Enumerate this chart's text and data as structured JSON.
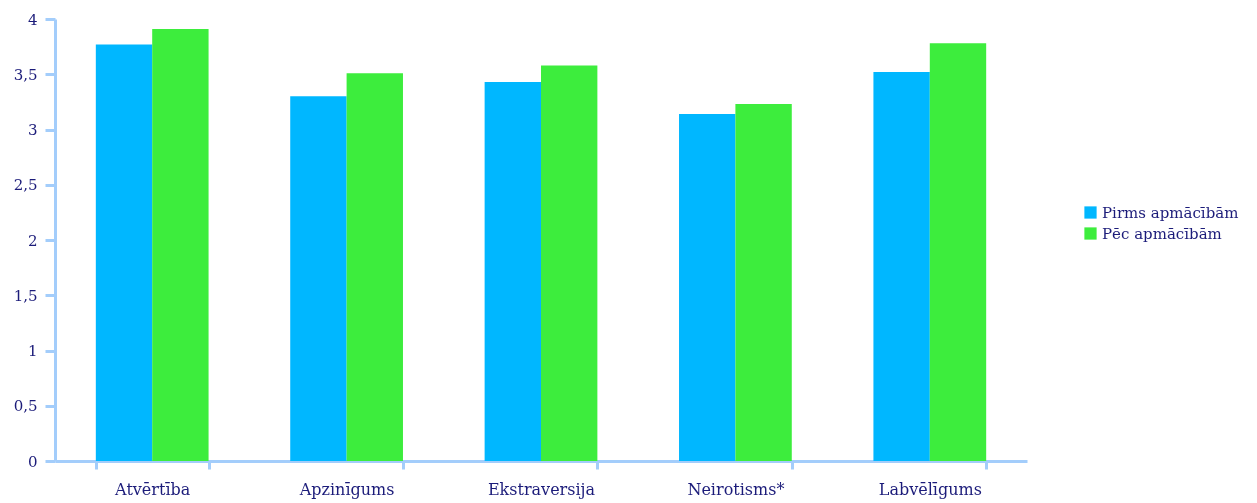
{
  "chart_data": {
    "type": "bar",
    "categories": [
      "Atvērtība",
      "Apzinīgums",
      "Ekstraversija",
      "Neirotisms*",
      "Labvēlīgums"
    ],
    "series": [
      {
        "name": "Pirms apmācībām",
        "color": "#00b7ff",
        "values": [
          3.77,
          3.3,
          3.43,
          3.14,
          3.52
        ]
      },
      {
        "name": "Pēc apmācībām",
        "color": "#3ded3d",
        "values": [
          3.91,
          3.51,
          3.58,
          3.23,
          3.78
        ]
      }
    ],
    "ylim": [
      0,
      4
    ],
    "yticks": [
      0,
      {
        "value": 0.5,
        "label": "0,5"
      },
      1,
      {
        "value": 1.5,
        "label": "1,5"
      },
      2,
      {
        "value": 2.5,
        "label": "2,5"
      },
      3,
      {
        "value": 3.5,
        "label": "3,5"
      },
      4
    ],
    "grid": false,
    "legend": "right"
  }
}
